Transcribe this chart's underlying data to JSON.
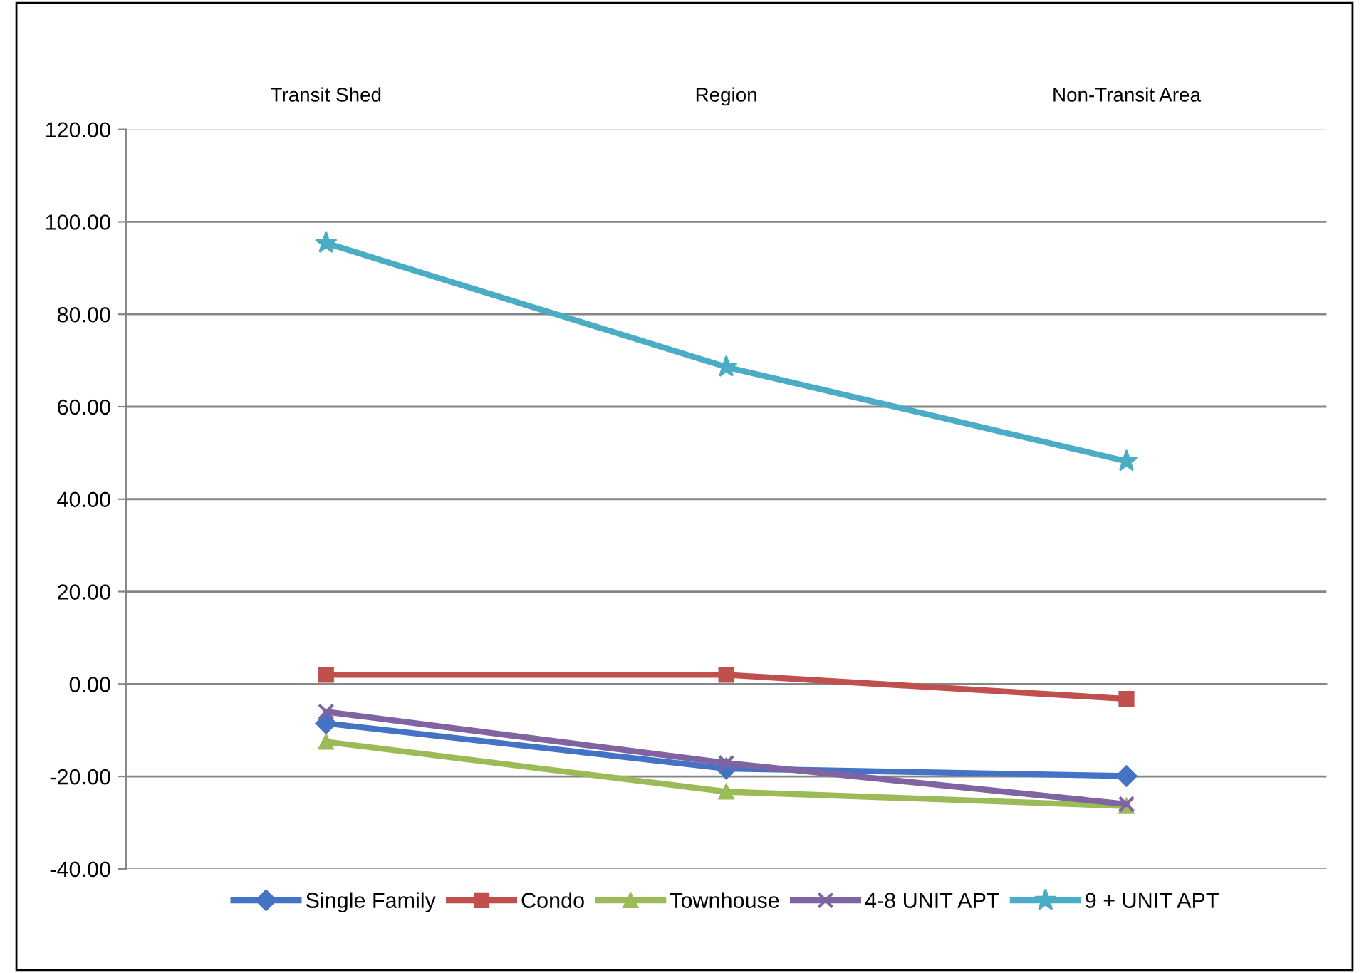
{
  "chart_data": {
    "type": "line",
    "categories": [
      "Transit Shed",
      "Region",
      "Non-Transit Area"
    ],
    "series": [
      {
        "name": "Single Family",
        "color": "#4472c4",
        "marker": "diamond",
        "values": [
          -8.5,
          -18.3,
          -19.9
        ]
      },
      {
        "name": "Condo",
        "color": "#c0504d",
        "marker": "square",
        "values": [
          2.0,
          2.0,
          -3.2
        ]
      },
      {
        "name": "Townhouse",
        "color": "#9bbb59",
        "marker": "triangle",
        "values": [
          -12.5,
          -23.3,
          -26.4
        ]
      },
      {
        "name": "4-8 UNIT APT",
        "color": "#8064a2",
        "marker": "cross",
        "values": [
          -6.0,
          -17.1,
          -26.0
        ]
      },
      {
        "name": "9 + UNIT APT",
        "color": "#4bacc6",
        "marker": "star",
        "values": [
          95.4,
          68.6,
          48.2
        ]
      }
    ],
    "ylim": [
      -40,
      120
    ],
    "yticks": [
      {
        "value": -40,
        "label": "-40.00"
      },
      {
        "value": -20,
        "label": "-20.00"
      },
      {
        "value": 0,
        "label": "0.00"
      },
      {
        "value": 20,
        "label": "20.00"
      },
      {
        "value": 40,
        "label": "40.00"
      },
      {
        "value": 60,
        "label": "60.00"
      },
      {
        "value": 80,
        "label": "80.00"
      },
      {
        "value": 100,
        "label": "100.00"
      },
      {
        "value": 120,
        "label": "120.00"
      }
    ],
    "grid": "y",
    "legend": "bottom",
    "line_style": "solid"
  }
}
